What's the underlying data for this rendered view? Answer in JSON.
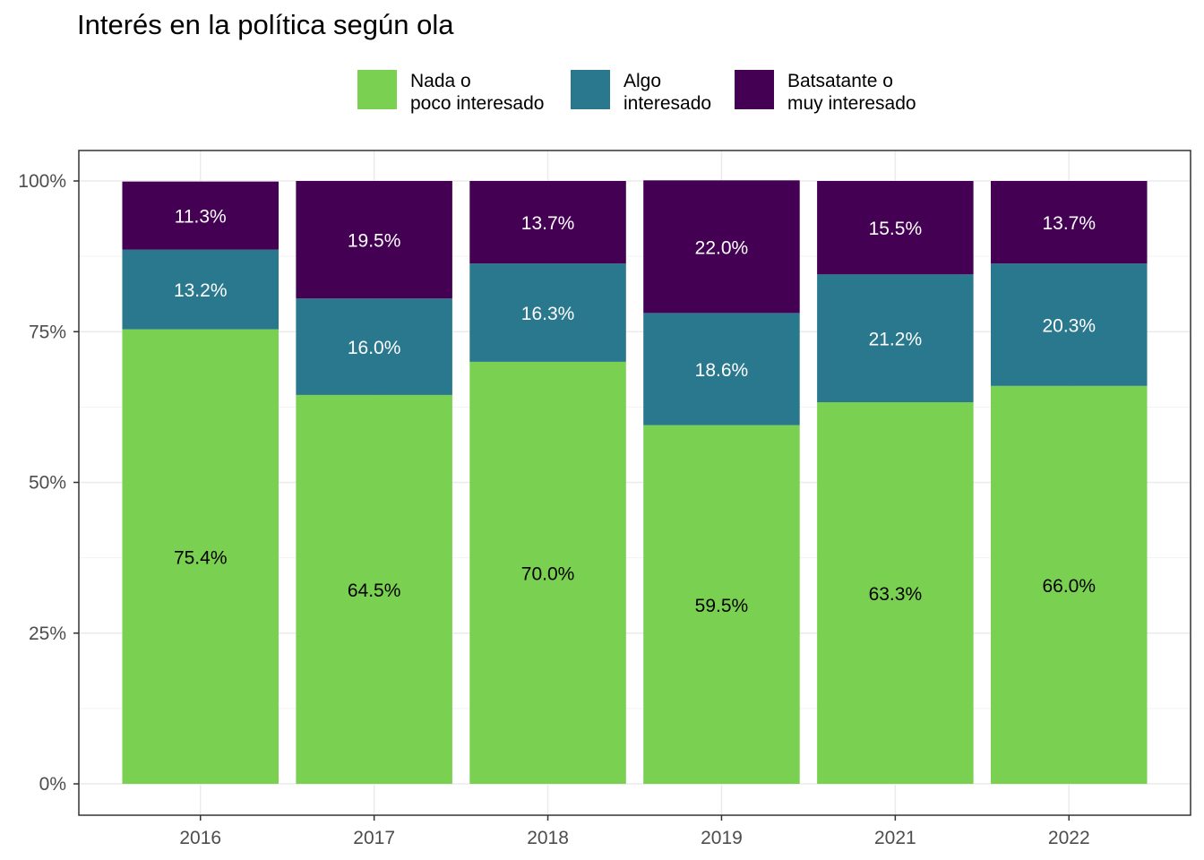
{
  "chart_data": {
    "type": "bar",
    "stacked": true,
    "title": "Interés en la política según ola",
    "xlabel": "",
    "ylabel": "",
    "categories": [
      "2016",
      "2017",
      "2018",
      "2019",
      "2021",
      "2022"
    ],
    "ylim": [
      0,
      1
    ],
    "y_ticks": [
      0,
      0.25,
      0.5,
      0.75,
      1.0
    ],
    "y_tick_labels": [
      "0%",
      "25%",
      "50%",
      "75%",
      "100%"
    ],
    "grid": true,
    "legend_position": "top",
    "series": [
      {
        "name": "Nada o\npoco interesado",
        "color": "#7AD151",
        "label_color": "#000000",
        "values": [
          0.754,
          0.645,
          0.7,
          0.595,
          0.633,
          0.66
        ],
        "labels": [
          "75.4%",
          "64.5%",
          "70.0%",
          "59.5%",
          "63.3%",
          "66.0%"
        ]
      },
      {
        "name": "Algo\ninteresado",
        "color": "#2A788E",
        "label_color": "#ffffff",
        "values": [
          0.132,
          0.16,
          0.163,
          0.186,
          0.212,
          0.203
        ],
        "labels": [
          "13.2%",
          "16.0%",
          "16.3%",
          "18.6%",
          "21.2%",
          "20.3%"
        ]
      },
      {
        "name": "Batsatante o\nmuy interesado",
        "color": "#440154",
        "label_color": "#ffffff",
        "values": [
          0.113,
          0.195,
          0.137,
          0.22,
          0.155,
          0.137
        ],
        "labels": [
          "11.3%",
          "19.5%",
          "13.7%",
          "22.0%",
          "15.5%",
          "13.7%"
        ]
      }
    ]
  }
}
